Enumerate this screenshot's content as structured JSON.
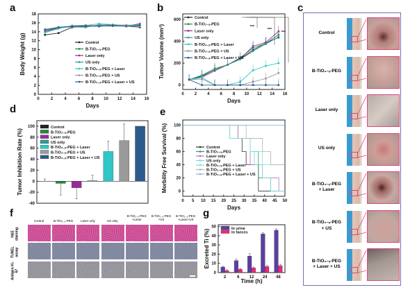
{
  "panel_labels": {
    "a": "a",
    "b": "b",
    "c": "c",
    "d": "d",
    "e": "e",
    "f": "f",
    "g": "g"
  },
  "groups": [
    "Control",
    "B-TiO₂₋ₓ-PEG",
    "Laser only",
    "US only",
    "B-TiO₂₋ₓ-PEG + Laser",
    "B-TiO₂₋ₓ-PEG + US",
    "B-TiO₂₋ₓ-PEG + Laser + US"
  ],
  "colors": [
    "#222222",
    "#1f8a3c",
    "#9a2a96",
    "#2a9a9a",
    "#2ec6c6",
    "#9a9a9a",
    "#2d5a8c"
  ],
  "chart_data": [
    {
      "id": "a",
      "type": "line",
      "xlabel": "Days",
      "ylabel": "Body Weight (g)",
      "xlim": [
        0,
        16
      ],
      "ylim": [
        0,
        18
      ],
      "xticks": [
        0,
        2,
        4,
        6,
        8,
        10,
        12,
        14,
        16
      ],
      "yticks": [
        0,
        2,
        4,
        6,
        8,
        10,
        12,
        14,
        16,
        18
      ],
      "legend": "center",
      "x": [
        1,
        3,
        5,
        7,
        9,
        11,
        13,
        15
      ],
      "series": [
        {
          "name": "Control",
          "values": [
            13.3,
            13.7,
            15.0,
            15.2,
            15.3,
            15.3,
            15.3,
            15.0
          ]
        },
        {
          "name": "B-TiO₂₋ₓ-PEG",
          "values": [
            14.2,
            14.9,
            15.3,
            15.2,
            15.5,
            15.6,
            15.4,
            15.3
          ]
        },
        {
          "name": "Laser only",
          "values": [
            14.0,
            14.8,
            15.2,
            15.3,
            15.4,
            15.5,
            15.3,
            15.8
          ]
        },
        {
          "name": "US only",
          "values": [
            14.4,
            14.9,
            15.1,
            15.0,
            15.6,
            15.3,
            15.5,
            15.4
          ]
        },
        {
          "name": "B-TiO₂₋ₓ-PEG + Laser",
          "values": [
            13.8,
            14.7,
            15.4,
            15.4,
            15.8,
            15.6,
            15.4,
            15.6
          ]
        },
        {
          "name": "B-TiO₂₋ₓ-PEG + US",
          "values": [
            14.5,
            15.0,
            15.3,
            15.5,
            15.3,
            15.5,
            15.5,
            15.2
          ]
        },
        {
          "name": "B-TiO₂₋ₓ-PEG + Laser + US",
          "values": [
            14.5,
            15.0,
            15.2,
            15.3,
            15.2,
            15.4,
            15.2,
            15.5
          ]
        }
      ]
    },
    {
      "id": "b",
      "type": "line",
      "xlabel": "Days",
      "ylabel": "Tumor Volume (mm³)",
      "xlim": [
        0,
        16
      ],
      "ylim": [
        -40,
        650
      ],
      "xticks": [
        0,
        2,
        4,
        6,
        8,
        10,
        12,
        14,
        16
      ],
      "yticks": [
        0,
        200,
        400,
        600
      ],
      "legend": "top-left",
      "significance": [
        "***",
        "***",
        "***"
      ],
      "x": [
        1,
        3,
        5,
        7,
        9,
        11,
        13,
        15
      ],
      "series": [
        {
          "name": "Control",
          "values": [
            50,
            80,
            140,
            185,
            240,
            320,
            385,
            435
          ]
        },
        {
          "name": "B-TiO₂₋ₓ-PEG",
          "values": [
            50,
            90,
            150,
            185,
            250,
            340,
            380,
            460
          ]
        },
        {
          "name": "Laser only",
          "values": [
            50,
            70,
            130,
            185,
            240,
            355,
            390,
            490
          ]
        },
        {
          "name": "US only",
          "values": [
            50,
            85,
            140,
            185,
            235,
            310,
            375,
            440
          ]
        },
        {
          "name": "B-TiO₂₋ₓ-PEG + Laser",
          "values": [
            50,
            70,
            0,
            0,
            30,
            135,
            175,
            200
          ]
        },
        {
          "name": "B-TiO₂₋ₓ-PEG + US",
          "values": [
            50,
            55,
            0,
            0,
            0,
            30,
            60,
            110
          ]
        },
        {
          "name": "B-TiO₂₋ₓ-PEG + Laser + US",
          "values": [
            50,
            0,
            0,
            0,
            0,
            0,
            0,
            0
          ]
        }
      ]
    },
    {
      "id": "d",
      "type": "bar",
      "ylabel": "Tumor Inhibition Rate (%)",
      "ylim": [
        -40,
        110
      ],
      "yticks": [
        -40,
        -20,
        0,
        20,
        40,
        60,
        80,
        100
      ],
      "legend": "top-left",
      "categories": [
        "Control",
        "B-TiO₂₋ₓ-PEG",
        "Laser only",
        "US only",
        "B-TiO₂₋ₓ-PEG + Laser",
        "B-TiO₂₋ₓ-PEG + US",
        "B-TiO₂₋ₓ-PEG + Laser + US"
      ],
      "values": [
        0,
        -4,
        -12,
        1,
        54,
        74,
        100
      ],
      "errors": [
        4,
        21,
        20,
        10,
        19,
        30,
        0
      ]
    },
    {
      "id": "e",
      "type": "line",
      "subtype": "step",
      "xlabel": "Days",
      "ylabel": "Morbility Free Survival (%)",
      "xlim": [
        0,
        50
      ],
      "ylim": [
        -8,
        108
      ],
      "xticks": [
        0,
        5,
        10,
        15,
        20,
        25,
        30,
        35,
        40,
        45,
        50
      ],
      "yticks": [
        0,
        20,
        40,
        60,
        80,
        100
      ],
      "legend": "center-left",
      "series": [
        {
          "name": "Control",
          "points": [
            [
              0,
              100
            ],
            [
              23,
              100
            ],
            [
              23,
              80
            ],
            [
              29,
              80
            ],
            [
              29,
              60
            ],
            [
              31,
              60
            ],
            [
              31,
              40
            ],
            [
              37,
              40
            ],
            [
              37,
              0
            ],
            [
              50,
              0
            ]
          ]
        },
        {
          "name": "B-TiO₂₋ₓ-PEG",
          "points": [
            [
              0,
              100
            ],
            [
              27,
              100
            ],
            [
              27,
              80
            ],
            [
              33,
              80
            ],
            [
              33,
              60
            ],
            [
              37,
              60
            ],
            [
              37,
              20
            ],
            [
              43,
              20
            ],
            [
              43,
              0
            ],
            [
              50,
              0
            ]
          ]
        },
        {
          "name": "Laser only",
          "points": [
            [
              0,
              100
            ],
            [
              27,
              100
            ],
            [
              27,
              80
            ],
            [
              33,
              80
            ],
            [
              33,
              40
            ],
            [
              39,
              40
            ],
            [
              39,
              20
            ],
            [
              47,
              20
            ],
            [
              47,
              0
            ],
            [
              50,
              0
            ]
          ]
        },
        {
          "name": "US only",
          "points": [
            [
              0,
              100
            ],
            [
              23,
              100
            ],
            [
              23,
              80
            ],
            [
              33,
              80
            ],
            [
              33,
              60
            ],
            [
              35,
              60
            ],
            [
              35,
              40
            ],
            [
              39,
              40
            ],
            [
              39,
              20
            ],
            [
              43,
              20
            ],
            [
              43,
              0
            ],
            [
              50,
              0
            ]
          ]
        },
        {
          "name": "B-TiO₂₋ₓ-PEG + Laser",
          "points": [
            [
              0,
              100
            ],
            [
              23,
              100
            ],
            [
              23,
              80
            ],
            [
              33,
              80
            ],
            [
              33,
              60
            ],
            [
              39,
              60
            ],
            [
              39,
              40
            ],
            [
              50,
              40
            ]
          ]
        },
        {
          "name": "B-TiO₂₋ₓ-PEG + US",
          "points": [
            [
              0,
              100
            ],
            [
              31,
              100
            ],
            [
              31,
              80
            ],
            [
              39,
              80
            ],
            [
              39,
              60
            ],
            [
              43,
              60
            ],
            [
              43,
              40
            ],
            [
              50,
              40
            ]
          ]
        },
        {
          "name": "B-TiO₂₋ₓ-PEG + Laser + US",
          "points": [
            [
              0,
              100
            ],
            [
              50,
              100
            ]
          ]
        }
      ]
    },
    {
      "id": "g",
      "type": "bar",
      "xlabel": "Time (h)",
      "ylabel": "Excreted Ti (%)",
      "ylim": [
        0,
        52
      ],
      "yticks": [
        0,
        10,
        20,
        30,
        40,
        50
      ],
      "legend": "top-left",
      "categories": [
        "2",
        "6",
        "12",
        "24",
        "48"
      ],
      "series": [
        {
          "name": "In urine",
          "color": "#5b3fa0",
          "values": [
            6,
            13,
            18,
            42,
            46
          ],
          "errors": [
            0.8,
            1.5,
            2.5,
            1.2,
            1.5
          ]
        },
        {
          "name": "In faeces",
          "color": "#e8287a",
          "values": [
            2.2,
            3.5,
            5,
            6.5,
            7.5
          ],
          "errors": [
            1,
            1,
            1,
            1.2,
            1.5
          ]
        }
      ]
    }
  ],
  "panel_c": {
    "rows": [
      "Control",
      "B-TiO₂₋ₓ-PEG",
      "Laser only",
      "US only",
      "B-TiO₂₋ₓ-PEG\n+ Laser",
      "B-TiO₂₋ₓ-PEG\n+ US",
      "B-TiO₂₋ₓ-PEG\n+ Laser + US"
    ]
  },
  "panel_f": {
    "columns": [
      "Control",
      "B-TiO₂₋ₓ-PEG",
      "Laser only",
      "US only",
      "B-TiO₂₋ₓ-PEG\n+Laser",
      "B-TiO₂₋ₓ-PEG\n+US",
      "B-TiO₂₋ₓ-PEG\n+Laser+US"
    ],
    "rows": [
      "H&E staining",
      "TUNEL assay",
      "Antigen Ki-67"
    ]
  }
}
